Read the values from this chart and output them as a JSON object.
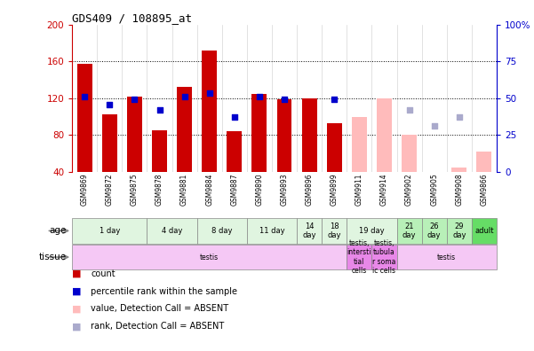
{
  "title": "GDS409 / 108895_at",
  "samples": [
    "GSM9869",
    "GSM9872",
    "GSM9875",
    "GSM9878",
    "GSM9881",
    "GSM9884",
    "GSM9887",
    "GSM9890",
    "GSM9893",
    "GSM9896",
    "GSM9899",
    "GSM9911",
    "GSM9914",
    "GSM9902",
    "GSM9905",
    "GSM9908",
    "GSM9866"
  ],
  "bar_values": [
    157,
    103,
    122,
    85,
    132,
    172,
    84,
    125,
    119,
    120,
    93,
    null,
    118,
    null,
    null,
    null,
    null
  ],
  "bar_absent_values": [
    null,
    null,
    null,
    null,
    null,
    null,
    null,
    null,
    null,
    null,
    null,
    100,
    120,
    80,
    40,
    45,
    62
  ],
  "dot_values_left": [
    122,
    113,
    119,
    107,
    122,
    126,
    100,
    122,
    119,
    null,
    119,
    null,
    null,
    null,
    null,
    null,
    null
  ],
  "dot_absent_values_left": [
    null,
    null,
    null,
    null,
    null,
    null,
    null,
    null,
    null,
    null,
    null,
    null,
    null,
    107,
    90,
    100,
    null
  ],
  "ylim_left": [
    40,
    200
  ],
  "ylim_right": [
    0,
    100
  ],
  "left_ticks": [
    40,
    80,
    120,
    160,
    200
  ],
  "right_ticks": [
    0,
    25,
    50,
    75,
    100
  ],
  "age_groups": [
    {
      "label": "1 day",
      "start": 0,
      "end": 2,
      "color": "#e0f5e0"
    },
    {
      "label": "4 day",
      "start": 3,
      "end": 4,
      "color": "#e0f5e0"
    },
    {
      "label": "8 day",
      "start": 5,
      "end": 6,
      "color": "#e0f5e0"
    },
    {
      "label": "11 day",
      "start": 7,
      "end": 8,
      "color": "#e0f5e0"
    },
    {
      "label": "14\nday",
      "start": 9,
      "end": 9,
      "color": "#e0f5e0"
    },
    {
      "label": "18\nday",
      "start": 10,
      "end": 10,
      "color": "#e0f5e0"
    },
    {
      "label": "19 day",
      "start": 11,
      "end": 12,
      "color": "#e0f5e0"
    },
    {
      "label": "21\nday",
      "start": 13,
      "end": 13,
      "color": "#b8f0b8"
    },
    {
      "label": "26\nday",
      "start": 14,
      "end": 14,
      "color": "#b8f0b8"
    },
    {
      "label": "29\nday",
      "start": 15,
      "end": 15,
      "color": "#b8f0b8"
    },
    {
      "label": "adult",
      "start": 16,
      "end": 16,
      "color": "#66dd66"
    }
  ],
  "tissue_groups": [
    {
      "label": "testis",
      "start": 0,
      "end": 10,
      "color": "#f5c8f5"
    },
    {
      "label": "testis,\nintersti\ntial\ncells",
      "start": 11,
      "end": 11,
      "color": "#e888e8"
    },
    {
      "label": "testis,\ntubula\nr soma\nic cells",
      "start": 12,
      "end": 12,
      "color": "#e888e8"
    },
    {
      "label": "testis",
      "start": 13,
      "end": 16,
      "color": "#f5c8f5"
    }
  ],
  "bar_color": "#cc0000",
  "bar_absent_color": "#ffbbbb",
  "dot_color": "#0000cc",
  "dot_absent_color": "#aaaacc",
  "tick_color_left": "#cc0000",
  "tick_color_right": "#0000cc",
  "legend_labels": [
    "count",
    "percentile rank within the sample",
    "value, Detection Call = ABSENT",
    "rank, Detection Call = ABSENT"
  ],
  "legend_colors": [
    "#cc0000",
    "#0000cc",
    "#ffbbbb",
    "#aaaacc"
  ]
}
